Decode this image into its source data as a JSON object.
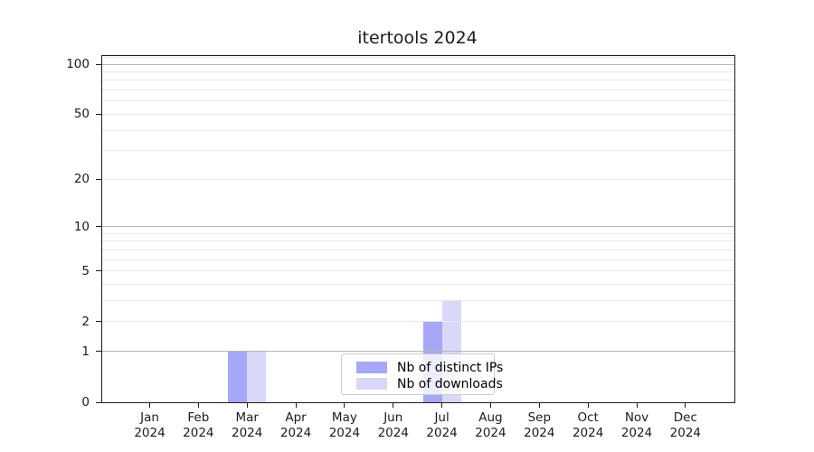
{
  "title": "itertools 2024",
  "chart_data": {
    "type": "bar",
    "title": "itertools 2024",
    "x_categories": [
      "Jan 2024",
      "Feb 2024",
      "Mar 2024",
      "Apr 2024",
      "May 2024",
      "Jun 2024",
      "Jul 2024",
      "Aug 2024",
      "Sep 2024",
      "Oct 2024",
      "Nov 2024",
      "Dec 2024"
    ],
    "x_ticks": [
      {
        "line1": "Jan",
        "line2": "2024"
      },
      {
        "line1": "Feb",
        "line2": "2024"
      },
      {
        "line1": "Mar",
        "line2": "2024"
      },
      {
        "line1": "Apr",
        "line2": "2024"
      },
      {
        "line1": "May",
        "line2": "2024"
      },
      {
        "line1": "Jun",
        "line2": "2024"
      },
      {
        "line1": "Jul",
        "line2": "2024"
      },
      {
        "line1": "Aug",
        "line2": "2024"
      },
      {
        "line1": "Sep",
        "line2": "2024"
      },
      {
        "line1": "Oct",
        "line2": "2024"
      },
      {
        "line1": "Nov",
        "line2": "2024"
      },
      {
        "line1": "Dec",
        "line2": "2024"
      }
    ],
    "series": [
      {
        "name": "Nb of distinct IPs",
        "color": "#a7a7f7",
        "values": [
          0,
          0,
          1,
          0,
          0,
          0,
          2,
          0,
          0,
          0,
          0,
          0
        ]
      },
      {
        "name": "Nb of downloads",
        "color": "#d8d8f8",
        "values": [
          0,
          0,
          1,
          0,
          0,
          0,
          3,
          0,
          0,
          0,
          0,
          0
        ]
      }
    ],
    "yaxis": {
      "scale": "log1p",
      "ylim": [
        0,
        112
      ],
      "tick_values": [
        0,
        1,
        2,
        5,
        10,
        20,
        50,
        100
      ],
      "tick_labels": [
        "0",
        "1",
        "2",
        "5",
        "10",
        "20",
        "50",
        "100"
      ],
      "major_grid": [
        1,
        10,
        100
      ],
      "minor_grid": [
        2,
        3,
        4,
        5,
        6,
        7,
        8,
        9,
        20,
        30,
        40,
        50,
        60,
        70,
        80,
        90,
        110
      ]
    },
    "grid": true,
    "legend_position": "lower center"
  },
  "colors": {
    "major_grid": "#b5b5b5",
    "minor_grid": "#e9e9e9",
    "spine": "#1c1c1c",
    "text": "#1b1b1b",
    "legend_border": "#cccccc",
    "legend_bg": "rgba(255,255,255,0.8)"
  }
}
